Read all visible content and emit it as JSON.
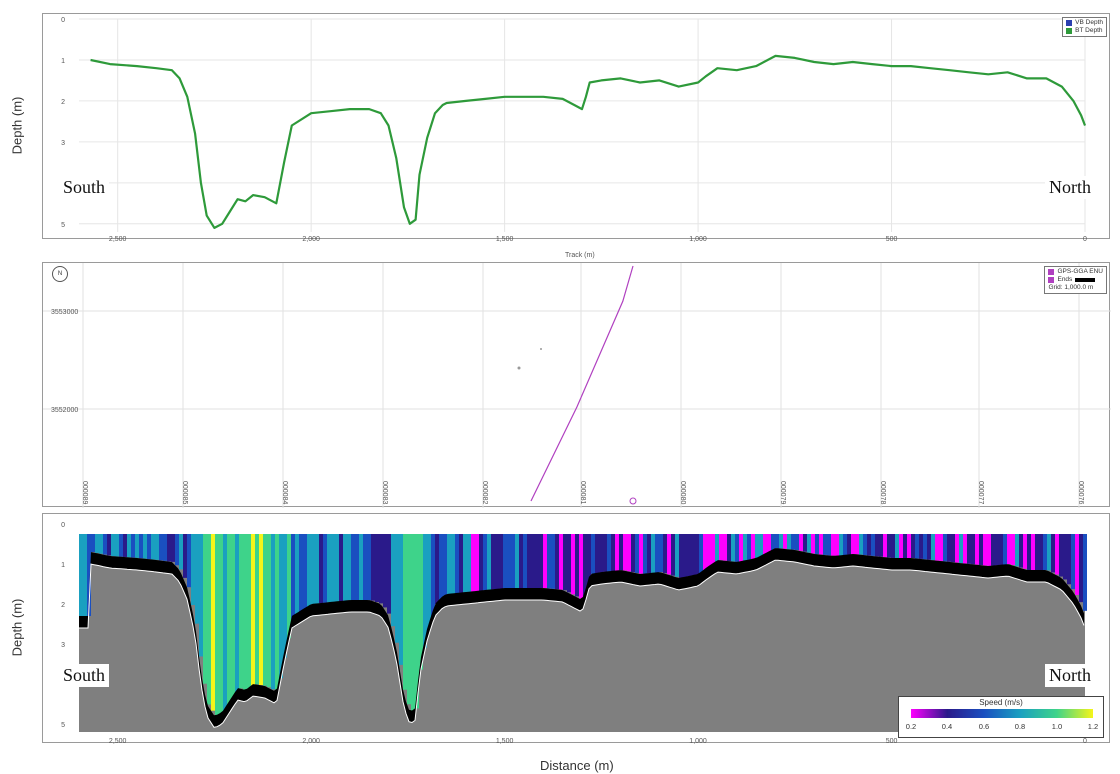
{
  "labels": {
    "south": "South",
    "north": "North",
    "depth_axis": "Depth (m)",
    "track_axis": "Track (m)",
    "distance_axis": "Distance (m)"
  },
  "legend_depth": {
    "items": [
      {
        "name": "VB Depth",
        "color": "#2b3fb0"
      },
      {
        "name": "BT Depth",
        "color": "#2e9a3a"
      }
    ]
  },
  "legend_track": {
    "items": [
      {
        "name": "GPS-GGA ENU"
      },
      {
        "name": "Ends"
      }
    ],
    "grid": "Grid: 1,000.0 m",
    "color": "#b040c0"
  },
  "colorbar": {
    "title": "Speed (m/s)",
    "ticks": [
      "0.2",
      "0.4",
      "0.6",
      "0.8",
      "1.0",
      "1.2"
    ],
    "colors": [
      "#ff00ff",
      "#2a1a8a",
      "#1a4fc0",
      "#1aa0c0",
      "#3ed38a",
      "#f5f51a"
    ]
  },
  "chart_data": [
    {
      "type": "line",
      "xlabel": "Track (m)",
      "ylabel": "Depth (m)",
      "xlim": [
        2600,
        0
      ],
      "ylim": [
        5.2,
        0
      ],
      "xticks": [
        "2,500",
        "2,000",
        "1,500",
        "1,000",
        "500",
        "0"
      ],
      "xtick_values": [
        2500,
        2000,
        1500,
        1000,
        500,
        0
      ],
      "yticks": [
        "0",
        "1",
        "2",
        "3",
        "4",
        "5"
      ],
      "series": [
        {
          "name": "BT Depth",
          "x": [
            2570,
            2520,
            2450,
            2400,
            2360,
            2340,
            2320,
            2300,
            2285,
            2270,
            2250,
            2230,
            2210,
            2190,
            2170,
            2150,
            2120,
            2100,
            2090,
            2070,
            2050,
            2000,
            1950,
            1900,
            1850,
            1820,
            1800,
            1780,
            1760,
            1745,
            1730,
            1720,
            1700,
            1680,
            1660,
            1650,
            1600,
            1550,
            1500,
            1450,
            1400,
            1350,
            1320,
            1300,
            1290,
            1280,
            1250,
            1200,
            1150,
            1100,
            1050,
            1000,
            980,
            950,
            900,
            850,
            800,
            750,
            700,
            650,
            600,
            550,
            500,
            450,
            400,
            350,
            300,
            250,
            200,
            150,
            100,
            60,
            30,
            10,
            0
          ],
          "y": [
            1.0,
            1.1,
            1.15,
            1.2,
            1.25,
            1.45,
            1.9,
            2.8,
            4.0,
            4.8,
            5.1,
            5.0,
            4.7,
            4.4,
            4.45,
            4.3,
            4.35,
            4.45,
            4.5,
            3.5,
            2.6,
            2.3,
            2.25,
            2.2,
            2.2,
            2.3,
            2.6,
            3.4,
            4.6,
            5.0,
            4.9,
            3.8,
            2.9,
            2.3,
            2.1,
            2.05,
            2.0,
            1.95,
            1.9,
            1.9,
            1.9,
            1.95,
            2.1,
            2.2,
            1.9,
            1.55,
            1.5,
            1.45,
            1.55,
            1.5,
            1.65,
            1.55,
            1.4,
            1.2,
            1.25,
            1.15,
            0.9,
            0.95,
            1.05,
            1.1,
            1.05,
            1.1,
            1.15,
            1.15,
            1.2,
            1.25,
            1.3,
            1.35,
            1.3,
            1.45,
            1.45,
            1.65,
            2.0,
            2.35,
            2.6
          ]
        }
      ]
    },
    {
      "type": "line",
      "title": "",
      "yticks": [
        "3553000",
        "3552000"
      ],
      "xticks": [
        "000089",
        "000085",
        "000084",
        "000083",
        "000082",
        "000081",
        "000080",
        "000079",
        "000078",
        "000077",
        "000076"
      ],
      "series": [
        {
          "name": "GPS-GGA ENU",
          "x": [
            0.0,
            0.45,
            0.9,
            1.0
          ],
          "y": [
            1.0,
            0.6,
            0.15,
            0.0
          ]
        }
      ]
    },
    {
      "type": "heatmap",
      "xlabel": "Distance (m)",
      "ylabel": "Depth (m)",
      "xlim": [
        2600,
        0
      ],
      "ylim": [
        5.2,
        0
      ],
      "xticks": [
        "2,500",
        "2,000",
        "1,500",
        "1,000",
        "500",
        "0"
      ],
      "yticks": [
        "0",
        "1",
        "2",
        "3",
        "4",
        "5"
      ],
      "colorbar_title": "Speed (m/s)",
      "colorbar_range": [
        0.2,
        1.2
      ]
    }
  ]
}
